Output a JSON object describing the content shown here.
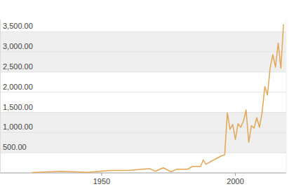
{
  "chart_data": {
    "type": "line",
    "x": [
      1924,
      1935,
      1945,
      1953,
      1960,
      1965,
      1968,
      1970,
      1973,
      1976,
      1978,
      1982,
      1984,
      1987,
      1988,
      1989,
      1991,
      1993,
      1995,
      1996,
      1997,
      1998,
      1999,
      2000,
      2001,
      2002,
      2003,
      2004,
      2005,
      2006,
      2007,
      2008,
      2009,
      2010,
      2011,
      2012,
      2013,
      2014,
      2015,
      2016,
      2017,
      2018
    ],
    "values": [
      10,
      40,
      15,
      60,
      60,
      90,
      105,
      40,
      125,
      30,
      90,
      90,
      160,
      160,
      320,
      215,
      290,
      360,
      430,
      445,
      1490,
      1080,
      1200,
      830,
      1220,
      1130,
      1280,
      1560,
      760,
      1170,
      1110,
      1370,
      1130,
      1500,
      2140,
      1930,
      2600,
      2930,
      2620,
      3220,
      2600,
      3680
    ],
    "color": "#e2a655",
    "xlim": [
      1912,
      2019
    ],
    "xticks": [
      1950,
      2000
    ],
    "ylim": [
      0,
      3800
    ],
    "yticks": [
      {
        "value": 500,
        "label": "500.00"
      },
      {
        "value": 1000,
        "label": "1,000.00"
      },
      {
        "value": 1500,
        "label": "1,500.00"
      },
      {
        "value": 2000,
        "label": "2,000.00"
      },
      {
        "value": 2500,
        "label": "2,500.00"
      },
      {
        "value": 3000,
        "label": "3,000.00"
      },
      {
        "value": 3500,
        "label": "3,500.00"
      }
    ],
    "grid": true
  }
}
